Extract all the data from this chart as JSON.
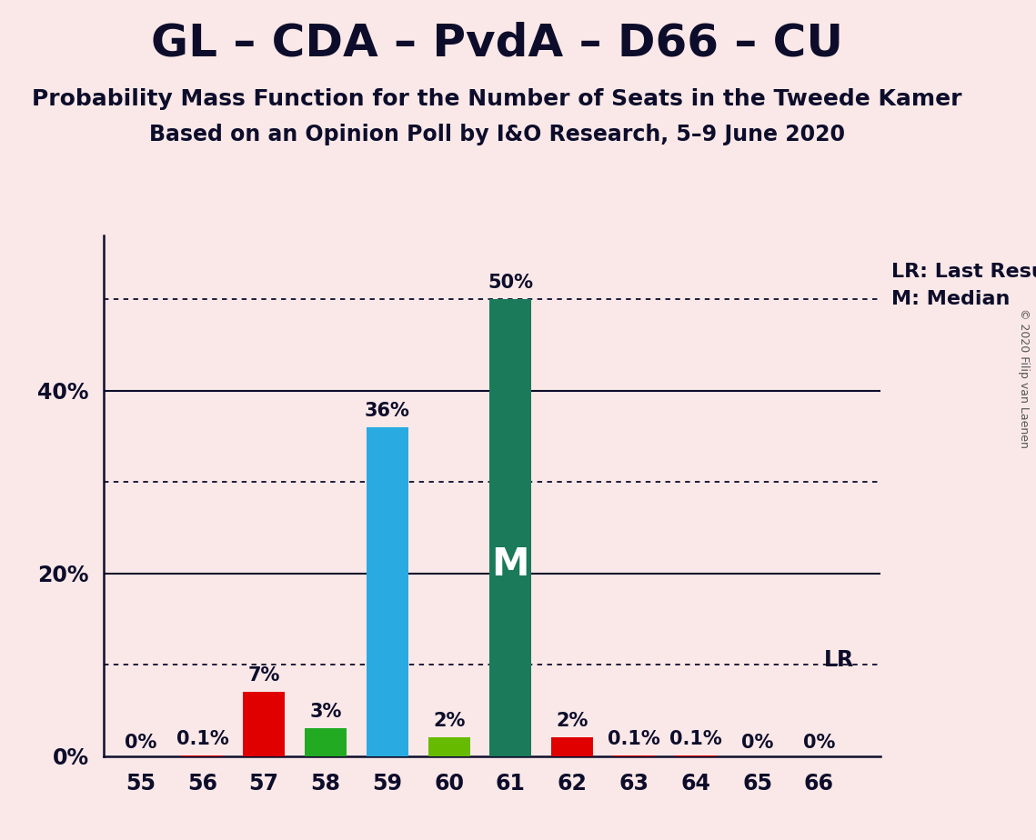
{
  "title": "GL – CDA – PvdA – D66 – CU",
  "subtitle": "Probability Mass Function for the Number of Seats in the Tweede Kamer",
  "subsubtitle": "Based on an Opinion Poll by I&O Research, 5–9 June 2020",
  "copyright": "© 2020 Filip van Laenen",
  "categories": [
    55,
    56,
    57,
    58,
    59,
    60,
    61,
    62,
    63,
    64,
    65,
    66
  ],
  "values": [
    0.0,
    0.1,
    7.0,
    3.0,
    36.0,
    2.0,
    50.0,
    2.0,
    0.1,
    0.1,
    0.0,
    0.0
  ],
  "bar_colors": [
    "#E00000",
    "#E00000",
    "#E00000",
    "#22AA22",
    "#29ABE2",
    "#66BB00",
    "#1A7A5A",
    "#E00000",
    "#E00000",
    "#E00000",
    "#E00000",
    "#E00000"
  ],
  "labels": [
    "0%",
    "0.1%",
    "7%",
    "3%",
    "36%",
    "2%",
    "50%",
    "2%",
    "0.1%",
    "0.1%",
    "0%",
    "0%"
  ],
  "median_bar": 61,
  "lr_bar": 66,
  "background_color": "#FAE8E8",
  "dotted_lines": [
    10,
    30,
    50
  ],
  "solid_lines": [
    20,
    40
  ],
  "ylim": [
    0,
    57
  ],
  "yticks": [
    0,
    20,
    40
  ],
  "ytick_labels": [
    "0%",
    "20%",
    "40%"
  ],
  "legend_lr": "LR: Last Result",
  "legend_m": "M: Median",
  "title_fontsize": 36,
  "subtitle_fontsize": 18,
  "subsubtitle_fontsize": 17,
  "label_fontsize": 15,
  "tick_fontsize": 17,
  "bar_width": 0.68
}
